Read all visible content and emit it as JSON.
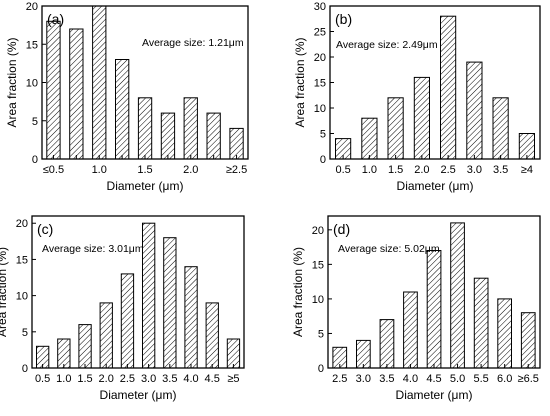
{
  "chart_data": [
    {
      "type": "bar",
      "panel_label": "(a)",
      "annotation": "Average size: 1.21μm",
      "categories": [
        "≤0.5",
        "",
        "1.0",
        "",
        "1.5",
        "",
        "2.0",
        "",
        "≥2.5"
      ],
      "values": [
        18,
        17,
        20,
        13,
        8,
        6,
        8,
        6,
        4
      ],
      "xlabel": "Diameter (μm)",
      "ylabel": "Area fraction (%)",
      "ylim": [
        0,
        20
      ],
      "yticks": [
        0,
        5,
        10,
        15,
        20
      ]
    },
    {
      "type": "bar",
      "panel_label": "(b)",
      "annotation": "Average size: 2.49μm",
      "categories": [
        "0.5",
        "1.0",
        "1.5",
        "2.0",
        "2.5",
        "3.0",
        "3.5",
        "≥4"
      ],
      "values": [
        4,
        8,
        12,
        16,
        28,
        19,
        12,
        5
      ],
      "xlabel": "Diameter (μm)",
      "ylabel": "Area fraction (%)",
      "ylim": [
        0,
        30
      ],
      "yticks": [
        0,
        5,
        10,
        15,
        20,
        25,
        30
      ]
    },
    {
      "type": "bar",
      "panel_label": "(c)",
      "annotation": "Average size: 3.01μm",
      "categories": [
        "0.5",
        "1.0",
        "1.5",
        "2.0",
        "2.5",
        "3.0",
        "3.5",
        "4.0",
        "4.5",
        "≥5"
      ],
      "values": [
        3,
        4,
        6,
        9,
        13,
        20,
        18,
        14,
        9,
        4
      ],
      "xlabel": "Diameter (μm)",
      "ylabel": "Area fraction (%)",
      "ylim": [
        0,
        21
      ],
      "yticks": [
        0,
        5,
        10,
        15,
        20
      ]
    },
    {
      "type": "bar",
      "panel_label": "(d)",
      "annotation": "Average size: 5.02μm",
      "categories": [
        "2.5",
        "3.0",
        "3.5",
        "4.0",
        "4.5",
        "5.0",
        "5.5",
        "6.0",
        "≥6.5"
      ],
      "values": [
        3,
        4,
        7,
        11,
        17,
        21,
        13,
        10,
        8
      ],
      "xlabel": "Diameter (μm)",
      "ylabel": "Area fraction (%)",
      "ylim": [
        0,
        22
      ],
      "yticks": [
        0,
        5,
        10,
        15,
        20
      ]
    }
  ]
}
